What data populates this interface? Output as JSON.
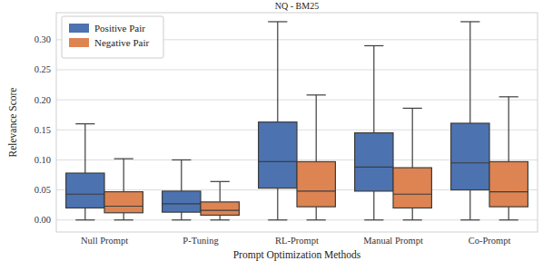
{
  "chart_data": {
    "type": "box",
    "title": "NQ - BM25",
    "x_label": "Prompt Optimization Methods",
    "y_label": "Relevance Score",
    "categories": [
      "Null Prompt",
      "P-Tuning",
      "RL-Prompt",
      "Manual Prompt",
      "Co-Prompt"
    ],
    "series": [
      {
        "name": "Positive Pair",
        "color": "#4c72b0",
        "min": [
          0.0,
          0.0,
          0.0,
          0.0,
          0.0
        ],
        "q1": [
          0.02,
          0.013,
          0.053,
          0.048,
          0.05
        ],
        "median": [
          0.043,
          0.027,
          0.097,
          0.088,
          0.095
        ],
        "q3": [
          0.078,
          0.048,
          0.163,
          0.145,
          0.161
        ],
        "max": [
          0.16,
          0.1,
          0.33,
          0.29,
          0.33
        ]
      },
      {
        "name": "Negative Pair",
        "color": "#dd8452",
        "min": [
          0.0,
          0.0,
          0.0,
          0.0,
          0.0
        ],
        "q1": [
          0.012,
          0.008,
          0.022,
          0.02,
          0.022
        ],
        "median": [
          0.023,
          0.016,
          0.048,
          0.043,
          0.047
        ],
        "q3": [
          0.047,
          0.03,
          0.097,
          0.087,
          0.097
        ],
        "max": [
          0.102,
          0.064,
          0.208,
          0.186,
          0.205
        ]
      }
    ],
    "ylim": [
      -0.02,
      0.345
    ],
    "yticks": [
      {
        "value": 0.0,
        "label": "0.00"
      },
      {
        "value": 0.05,
        "label": "0.05"
      },
      {
        "value": 0.1,
        "label": "0.10"
      },
      {
        "value": 0.15,
        "label": "0.15"
      },
      {
        "value": 0.2,
        "label": "0.20"
      },
      {
        "value": 0.25,
        "label": "0.25"
      },
      {
        "value": 0.3,
        "label": "0.30"
      }
    ],
    "grid": true,
    "legend": "upper left"
  }
}
